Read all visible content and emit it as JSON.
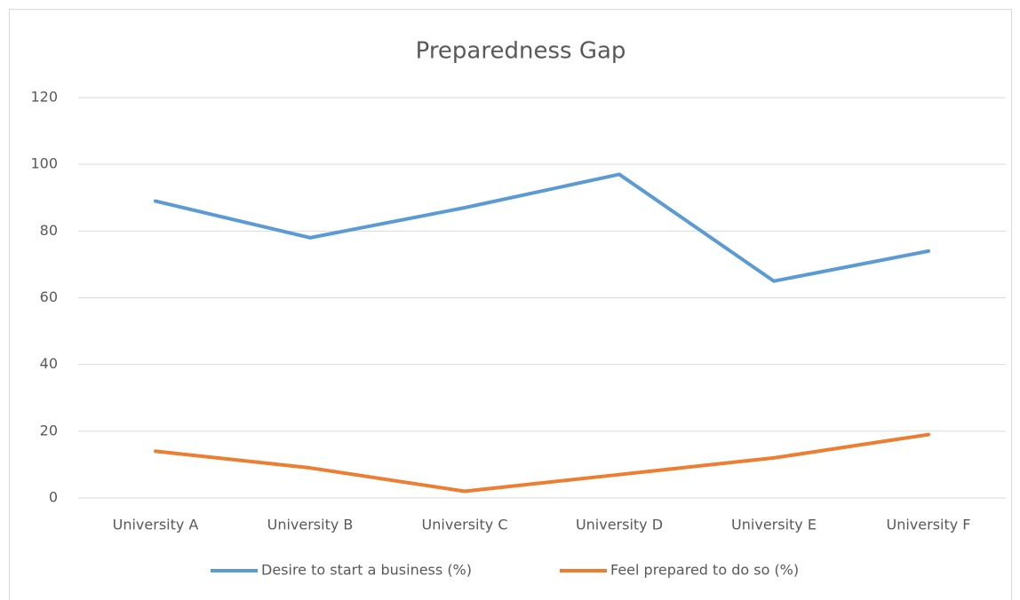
{
  "chart_data": {
    "type": "line",
    "title": "Preparedness Gap",
    "categories": [
      "University A",
      "University B",
      "University C",
      "University D",
      "University E",
      "University F"
    ],
    "series": [
      {
        "name": "Desire to start a business (%)",
        "color": "#5b9bd5",
        "values": [
          89,
          78,
          87,
          97,
          65,
          74
        ]
      },
      {
        "name": "Feel prepared to do so (%)",
        "color": "#ed7d31",
        "values": [
          14,
          9,
          2,
          7,
          12,
          19
        ]
      }
    ],
    "ylim": [
      0,
      120
    ],
    "yticks": [
      0,
      20,
      40,
      60,
      80,
      100,
      120
    ],
    "grid": true,
    "legend": "bottom"
  }
}
